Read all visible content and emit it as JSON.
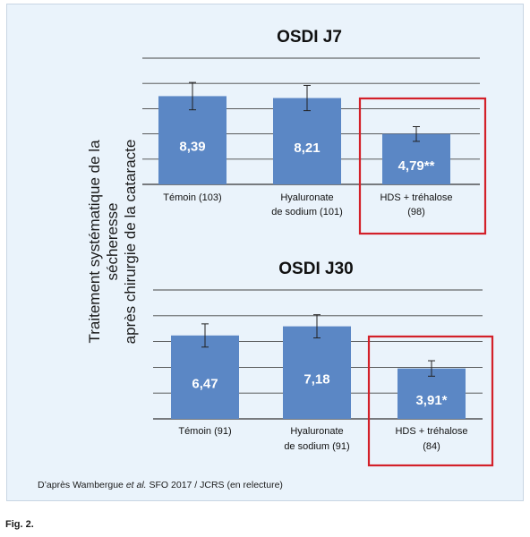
{
  "y_axis_label_line1": "Traitement systématique de la sécheresse",
  "y_axis_label_line2": "après chirurgie de la cataracte",
  "source_prefix": "D’après Wambergue ",
  "source_etal": "et al.",
  "source_suffix": " SFO 2017 / JCRS (en relecture)",
  "figure_label": "Fig. 2.",
  "colors": {
    "bar": "#5b87c5",
    "highlight_box": "#d32029",
    "panel_bg": "#eaf3fb",
    "value_text": "#ffffff"
  },
  "chart_data": [
    {
      "type": "bar",
      "title": "OSDI J7",
      "categories": [
        {
          "line1": "Témoin (103)",
          "line2": ""
        },
        {
          "line1": "Hyaluronate",
          "line2": "de sodium (101)"
        },
        {
          "line1": "HDS + tréhalose",
          "line2": "(98)"
        }
      ],
      "values": [
        8.39,
        8.21,
        4.79
      ],
      "value_labels": [
        "8,39",
        "8,21",
        "4,79**"
      ],
      "error": [
        1.3,
        1.2,
        0.7
      ],
      "ylim": [
        0,
        12
      ],
      "grid": true,
      "highlighted_category_index": 2
    },
    {
      "type": "bar",
      "title": "OSDI J30",
      "categories": [
        {
          "line1": "Témoin (91)",
          "line2": ""
        },
        {
          "line1": "Hyaluronate",
          "line2": "de sodium (91)"
        },
        {
          "line1": "HDS + tréhalose",
          "line2": "(84)"
        }
      ],
      "values": [
        6.47,
        7.18,
        3.91
      ],
      "value_labels": [
        "6,47",
        "7,18",
        "3,91*"
      ],
      "error": [
        0.9,
        0.9,
        0.6
      ],
      "ylim": [
        0,
        10
      ],
      "grid": true,
      "highlighted_category_index": 2
    }
  ]
}
